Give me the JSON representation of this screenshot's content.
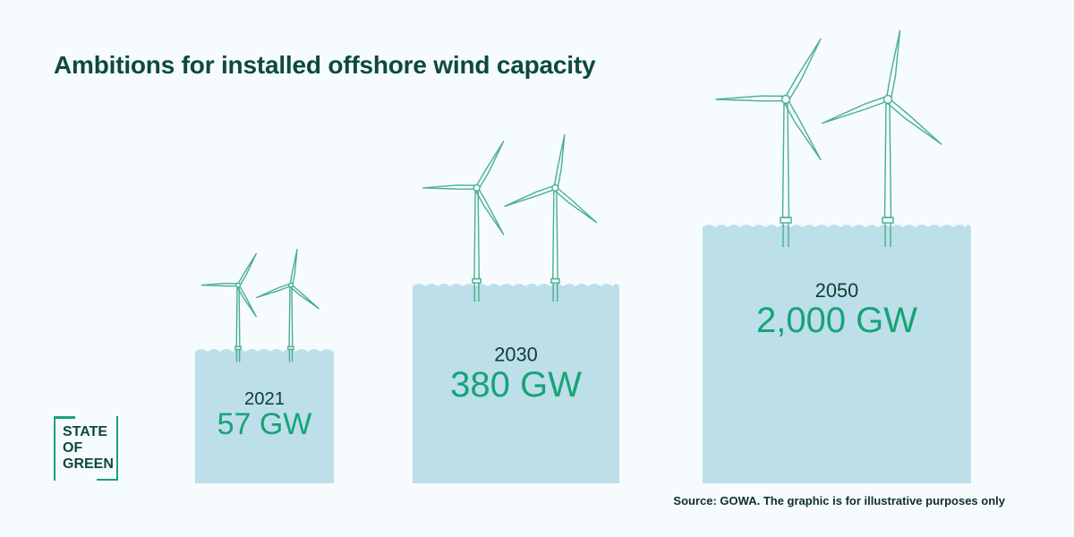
{
  "title": "Ambitions for installed offshore wind capacity",
  "logo": {
    "line1": "STATE",
    "line2": "OF",
    "line3": "GREEN"
  },
  "source": "Source: GOWA. The graphic is for illustrative purposes only",
  "colors": {
    "water": "#bcdfe9",
    "turbine": "#48b08e",
    "year_text": "#0e3e31",
    "value_text": "#17a378",
    "title": "#0c4a39",
    "background": "#f6fbfe"
  },
  "chart_data": {
    "type": "bar",
    "unit": "GW",
    "categories": [
      "2021",
      "2030",
      "2050"
    ],
    "values": [
      57,
      380,
      2000
    ],
    "value_labels": [
      "57 GW",
      "380 GW",
      "2,000 GW"
    ],
    "title": "Ambitions for installed offshore wind capacity",
    "xlabel": "",
    "ylabel": "",
    "turbines_per_bar": 2,
    "grid": false
  }
}
